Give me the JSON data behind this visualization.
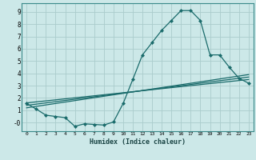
{
  "title": "",
  "xlabel": "Humidex (Indice chaleur)",
  "bg_color": "#cce8e8",
  "grid_color": "#aacccc",
  "line_color": "#1a6b6b",
  "xlim": [
    -0.5,
    23.5
  ],
  "ylim": [
    -0.7,
    9.7
  ],
  "xticks": [
    0,
    1,
    2,
    3,
    4,
    5,
    6,
    7,
    8,
    9,
    10,
    11,
    12,
    13,
    14,
    15,
    16,
    17,
    18,
    19,
    20,
    21,
    22,
    23
  ],
  "yticks": [
    0,
    1,
    2,
    3,
    4,
    5,
    6,
    7,
    8,
    9
  ],
  "ytick_labels": [
    "-0",
    "1",
    "2",
    "3",
    "4",
    "5",
    "6",
    "7",
    "8",
    "9"
  ],
  "curve1_x": [
    0,
    1,
    2,
    3,
    4,
    5,
    6,
    7,
    8,
    9,
    10,
    11,
    12,
    13,
    14,
    15,
    16,
    17,
    18,
    19,
    20,
    21,
    22,
    23
  ],
  "curve1_y": [
    1.55,
    1.1,
    0.6,
    0.5,
    0.4,
    -0.3,
    -0.1,
    -0.15,
    -0.2,
    0.05,
    1.55,
    3.5,
    5.5,
    6.5,
    7.5,
    8.3,
    9.1,
    9.1,
    8.3,
    5.5,
    5.5,
    4.5,
    3.6,
    3.2
  ],
  "line1_x": [
    0,
    23
  ],
  "line1_y": [
    1.6,
    3.5
  ],
  "line2_x": [
    0,
    23
  ],
  "line2_y": [
    1.4,
    3.7
  ],
  "line3_x": [
    0,
    23
  ],
  "line3_y": [
    1.2,
    3.9
  ]
}
